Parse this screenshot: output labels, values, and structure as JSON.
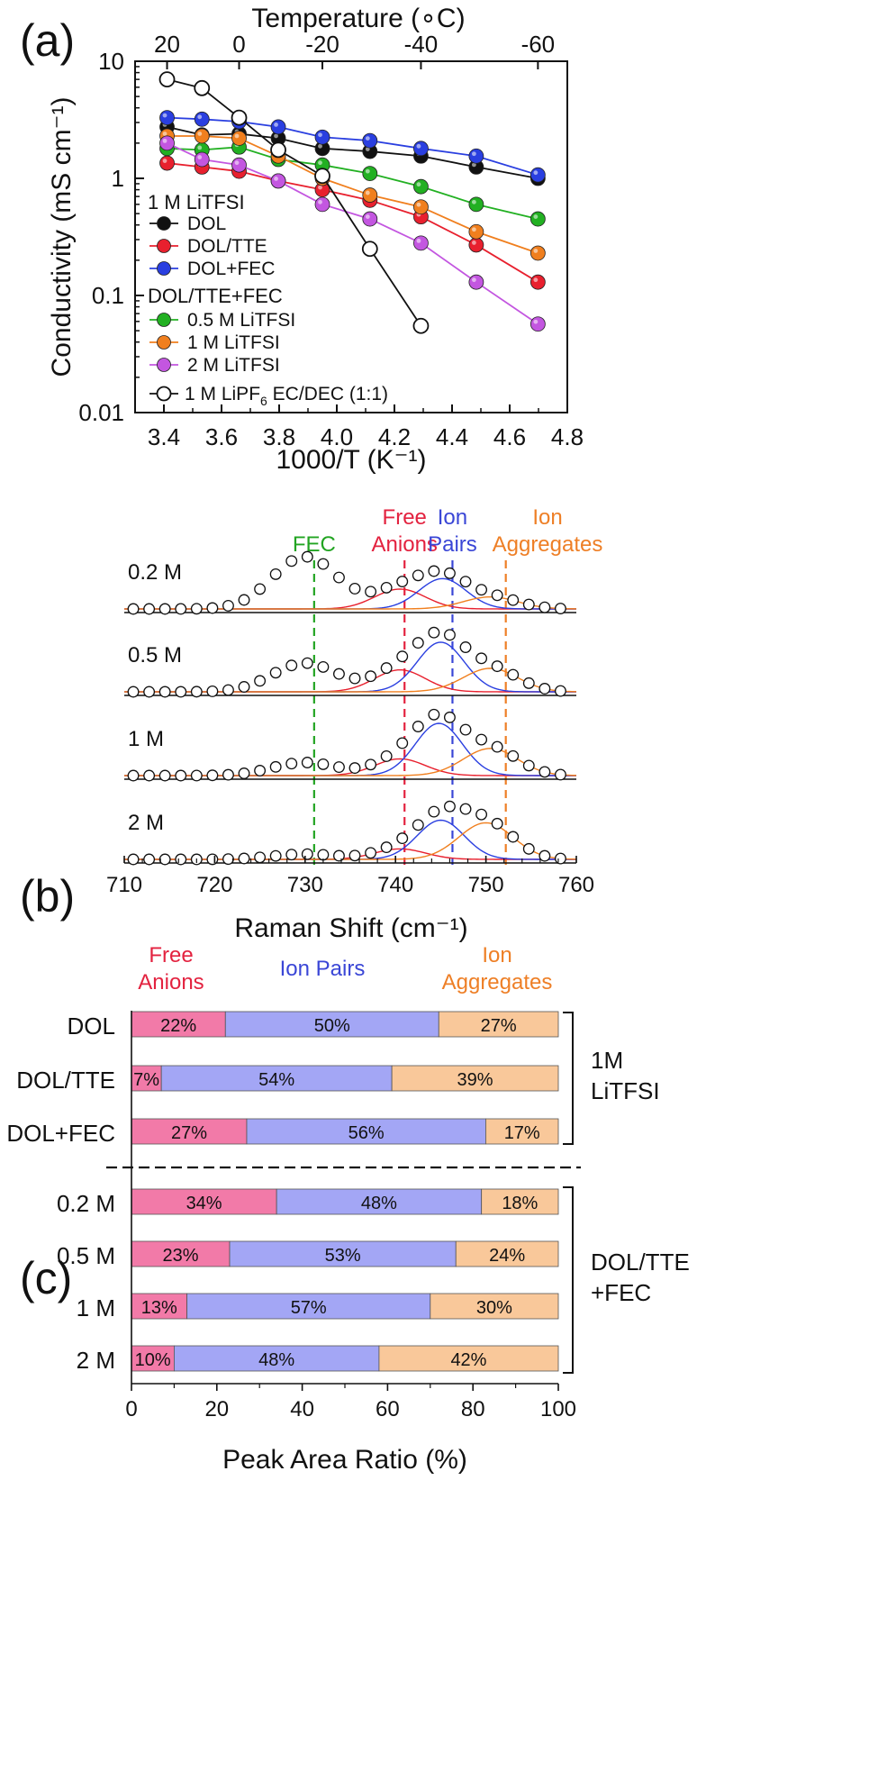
{
  "panel_labels": [
    "(a)",
    "(b)",
    "(c)"
  ],
  "colors": {
    "DOL": "#111111",
    "DOL/TTE": "#e8202e",
    "DOL+FEC": "#2a3fe0",
    "0.5 M LiTFSI": "#22b022",
    "1 M LiTFSI": "#f07f1e",
    "2 M LiTFSI": "#c356e0",
    "free": "#f27aa8",
    "pairs": "#a3a6f5",
    "aggr": "#f9c89a",
    "free_text": "#e3223f",
    "pairs_text": "#3a46d6",
    "aggr_text": "#ee7f26"
  },
  "chart_data": [
    {
      "type": "line",
      "panel": "(a)",
      "title": "",
      "xlabel": "1000/T (K⁻¹)",
      "ylabel": "Conductivity (mS cm⁻¹)",
      "top_axis_label": "Temperature (∘C)",
      "top_ticks": [
        {
          "label": "20",
          "x": 3.411
        },
        {
          "label": "0",
          "x": 3.661
        },
        {
          "label": "-20",
          "x": 3.95
        },
        {
          "label": "-40",
          "x": 4.292
        },
        {
          "label": "-60",
          "x": 4.698
        }
      ],
      "xlim": [
        3.3,
        4.8
      ],
      "ylim": [
        0.01,
        10
      ],
      "yscale": "log",
      "x_ticks": [
        "3.4",
        "3.6",
        "3.8",
        "4.0",
        "4.2",
        "4.4",
        "4.6",
        "4.8"
      ],
      "y_ticks": [
        "0.01",
        "0.1",
        "1",
        "10"
      ],
      "legend_group_1": "1 M LiTFSI",
      "legend_group_2": "DOL/TTE+FEC",
      "x": [
        3.411,
        3.532,
        3.661,
        3.797,
        3.95,
        4.115,
        4.292,
        4.484,
        4.698
      ],
      "series": [
        {
          "name": "DOL",
          "values": [
            2.75,
            2.35,
            2.4,
            2.2,
            1.8,
            1.7,
            1.55,
            1.25,
            1.0
          ]
        },
        {
          "name": "DOL/TTE",
          "values": [
            1.35,
            1.25,
            1.15,
            0.95,
            0.8,
            0.65,
            0.47,
            0.27,
            0.13
          ]
        },
        {
          "name": "DOL+FEC",
          "values": [
            3.3,
            3.2,
            3.05,
            2.75,
            2.25,
            2.1,
            1.8,
            1.55,
            1.07
          ]
        },
        {
          "name": "0.5 M LiTFSI",
          "values": [
            1.8,
            1.75,
            1.85,
            1.45,
            1.3,
            1.1,
            0.85,
            0.6,
            0.45
          ]
        },
        {
          "name": "1 M LiTFSI",
          "values": [
            2.3,
            2.3,
            2.2,
            1.55,
            1.0,
            0.72,
            0.57,
            0.35,
            0.23
          ]
        },
        {
          "name": "2 M LiTFSI",
          "values": [
            2.0,
            1.45,
            1.3,
            0.95,
            0.6,
            0.45,
            0.28,
            0.13,
            0.057
          ]
        },
        {
          "name": "1 M LiPF6 EC/DEC (1:1)",
          "values": [
            7.0,
            5.9,
            3.3,
            1.75,
            1.05,
            0.25,
            0.055,
            null,
            null
          ]
        }
      ],
      "legend_last_label": {
        "pre": "1 M LiPF",
        "sub": "6",
        "post": " EC/DEC (1:1)"
      }
    },
    {
      "type": "line",
      "panel": "(b)",
      "xlabel": "Raman Shift (cm⁻¹)",
      "xlim": [
        710,
        760
      ],
      "x_ticks": [
        "710",
        "720",
        "730",
        "740",
        "750",
        "760"
      ],
      "ref_lines": [
        {
          "label_lines": [
            "FEC"
          ],
          "x": 731,
          "color": "#22a422"
        },
        {
          "label_lines": [
            "Free",
            "Anions"
          ],
          "x": 741,
          "color": "#e3223f"
        },
        {
          "label_lines": [
            "Ion",
            "Pairs"
          ],
          "x": 746.3,
          "color": "#3a46d6"
        },
        {
          "label_lines": [
            "Ion",
            "Aggregates"
          ],
          "x": 752.2,
          "color": "#ee7f26"
        }
      ],
      "spectra": [
        {
          "label": "0.2 M",
          "fec": 1.0,
          "free": 0.38,
          "pairs": 0.58,
          "aggr": 0.23,
          "free_c": 740.5,
          "pairs_c": 745.2,
          "aggr_c": 750.5
        },
        {
          "label": "0.5 M",
          "fec": 0.55,
          "free": 0.42,
          "pairs": 0.95,
          "aggr": 0.45,
          "free_c": 740.5,
          "pairs_c": 745.0,
          "aggr_c": 750.5
        },
        {
          "label": "1 M",
          "fec": 0.25,
          "free": 0.32,
          "pairs": 1.0,
          "aggr": 0.52,
          "free_c": 740.5,
          "pairs_c": 744.8,
          "aggr_c": 750.5
        },
        {
          "label": "2 M",
          "fec": 0.1,
          "free": 0.2,
          "pairs": 0.75,
          "aggr": 0.7,
          "free_c": 740.5,
          "pairs_c": 745.0,
          "aggr_c": 750.0
        }
      ]
    },
    {
      "type": "bar",
      "panel": "(c)",
      "orientation": "horizontal-stacked",
      "xlabel": "Peak Area Ratio (%)",
      "xlim": [
        0,
        100
      ],
      "x_ticks": [
        "0",
        "20",
        "40",
        "60",
        "80",
        "100"
      ],
      "segment_headers": [
        {
          "key": "free",
          "lines": [
            "Free",
            "Anions"
          ]
        },
        {
          "key": "pairs",
          "lines": [
            "Ion Pairs"
          ]
        },
        {
          "key": "aggr",
          "lines": [
            "Ion",
            "Aggregates"
          ]
        }
      ],
      "groups": [
        {
          "label_lines": [
            "1M",
            "LiTFSI"
          ]
        },
        {
          "label_lines": [
            "DOL/TTE",
            "+FEC"
          ]
        }
      ],
      "categories": [
        "DOL",
        "DOL/TTE",
        "DOL+FEC",
        "0.2 M",
        "0.5 M",
        "1 M",
        "2 M"
      ],
      "series": [
        {
          "name": "Free Anions",
          "key": "free",
          "values": [
            22,
            7,
            27,
            34,
            23,
            13,
            10
          ],
          "labels": [
            "22%",
            "7%",
            "27%",
            "34%",
            "23%",
            "13%",
            "10%"
          ]
        },
        {
          "name": "Ion Pairs",
          "key": "pairs",
          "values": [
            50,
            54,
            56,
            48,
            53,
            57,
            48
          ],
          "labels": [
            "50%",
            "54%",
            "56%",
            "48%",
            "53%",
            "57%",
            "48%"
          ]
        },
        {
          "name": "Ion Aggregates",
          "key": "aggr",
          "values": [
            27,
            39,
            17,
            18,
            24,
            30,
            42
          ],
          "labels": [
            "27%",
            "39%",
            "17%",
            "18%",
            "24%",
            "30%",
            "42%"
          ]
        }
      ]
    }
  ]
}
